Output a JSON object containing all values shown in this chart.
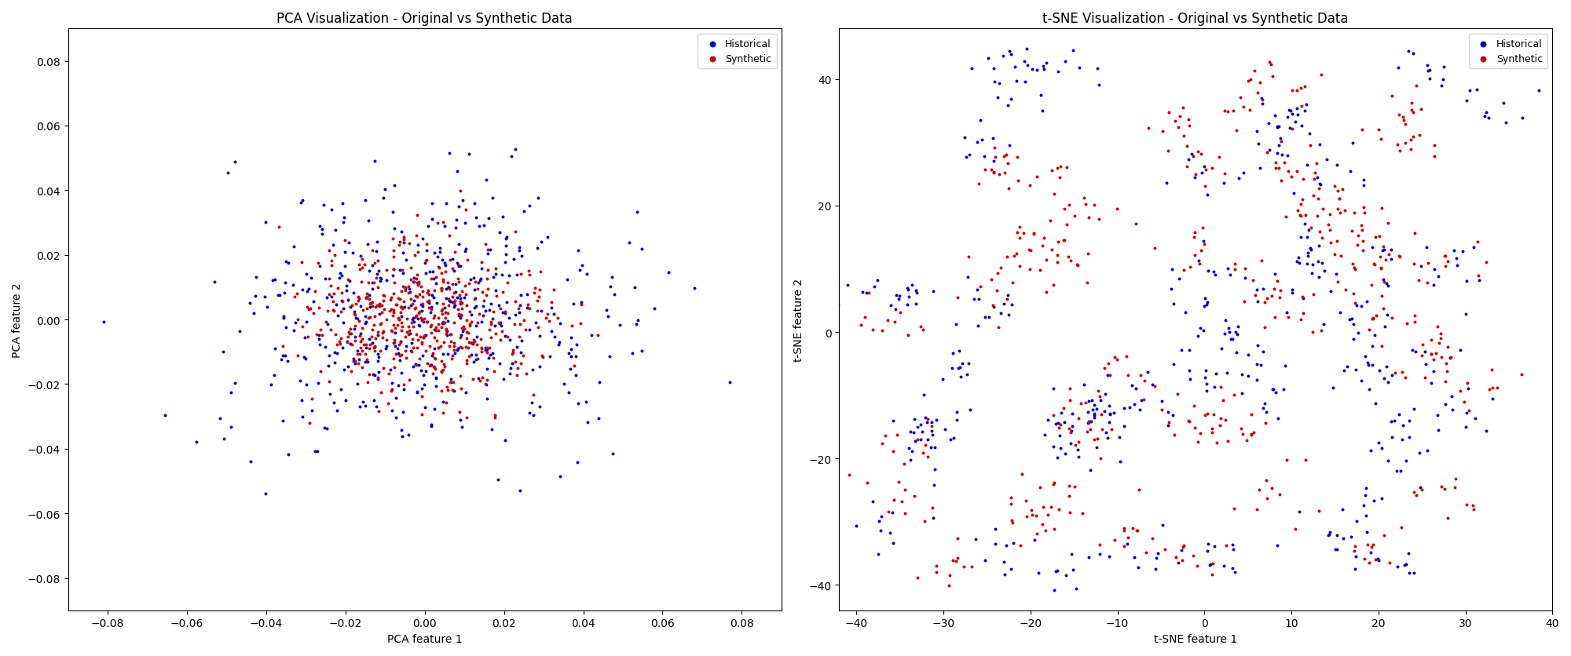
{
  "pca_title": "PCA Visualization - Original vs Synthetic Data",
  "tsne_title": "t-SNE Visualization - Original vs Synthetic Data",
  "pca_xlabel": "PCA feature 1",
  "pca_ylabel": "PCA feature 2",
  "tsne_xlabel": "t-SNE feature 1",
  "tsne_ylabel": "t-SNE feature 2",
  "historical_color": "#0000cc",
  "synthetic_color": "#cc0000",
  "legend_historical": "Historical",
  "legend_synthetic": "Synthetic",
  "marker_size": 8,
  "pca_xlim": [
    -0.09,
    0.09
  ],
  "pca_ylim": [
    -0.09,
    0.09
  ],
  "tsne_xlim": [
    -42,
    40
  ],
  "tsne_ylim": [
    -44,
    48
  ],
  "n_historical": 504,
  "n_synthetic": 500,
  "figsize": [
    20.0,
    8.37
  ],
  "dpi": 100
}
